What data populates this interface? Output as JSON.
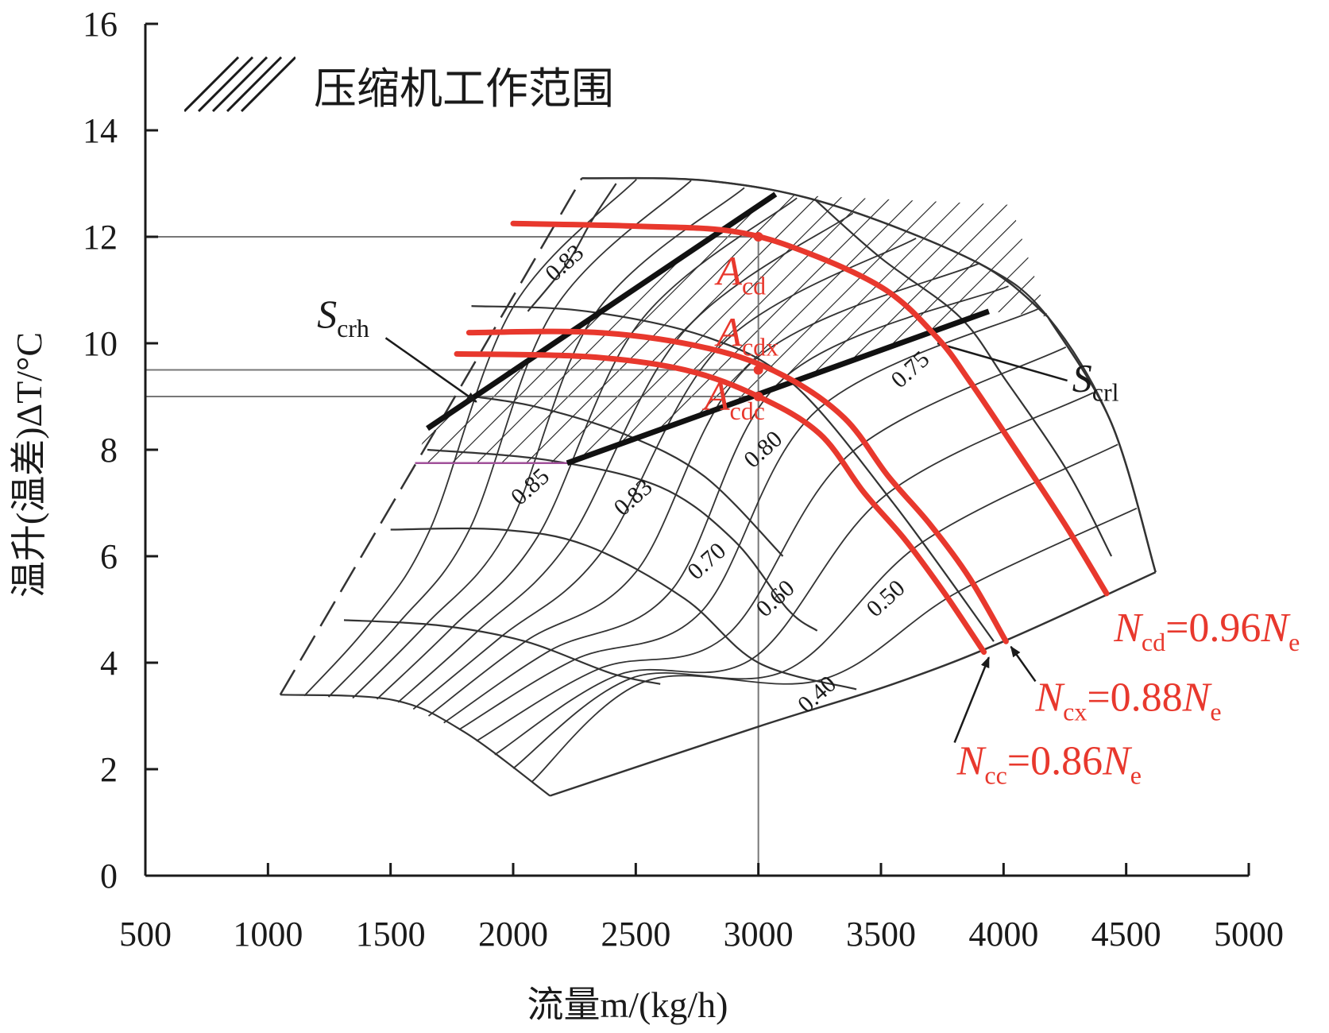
{
  "chart_data": {
    "type": "line",
    "xlabel": "流量m/(kg/h)",
    "ylabel": "温升(温差)ΔT/°C",
    "xlim": [
      500,
      5000
    ],
    "ylim": [
      0,
      16
    ],
    "xticks": [
      "500",
      "1000",
      "1500",
      "2000",
      "2500",
      "3000",
      "3500",
      "4000",
      "4500",
      "5000"
    ],
    "yticks": [
      "0",
      "2",
      "4",
      "6",
      "8",
      "10",
      "12",
      "14",
      "16"
    ],
    "legend": {
      "label": "压缩机工作范围",
      "placement": "top-left",
      "pattern": "hatch"
    },
    "colors": {
      "axis": "#1a1a1a",
      "grid": "#333333",
      "highlight": "#e8382d",
      "guide": "#777777",
      "magenta": "#a0509a"
    },
    "boundary_left": [
      [
        1050,
        3.4
      ],
      [
        1700,
        8.5
      ],
      [
        2280,
        13.1
      ]
    ],
    "boundary_top": [
      [
        2280,
        13.1
      ],
      [
        2800,
        13.05
      ],
      [
        3300,
        12.6
      ],
      [
        3900,
        11.5
      ],
      [
        4180,
        10.5
      ]
    ],
    "boundary_right": [
      [
        4180,
        10.5
      ],
      [
        4440,
        8.5
      ],
      [
        4620,
        5.7
      ]
    ],
    "boundary_bottom": [
      [
        4620,
        5.7
      ],
      [
        4000,
        4.4
      ],
      [
        3550,
        3.6
      ],
      [
        3000,
        2.8
      ],
      [
        2150,
        1.5
      ]
    ],
    "boundary_lower_left": [
      [
        1050,
        3.4
      ],
      [
        1510,
        3.3
      ],
      [
        1800,
        2.7
      ],
      [
        2150,
        1.5
      ]
    ],
    "speed_lines": [
      [
        [
          2280,
          13.1
        ],
        [
          2800,
          13.05
        ],
        [
          3300,
          12.6
        ],
        [
          3900,
          11.5
        ],
        [
          4180,
          10.5
        ],
        [
          4440,
          8.5
        ],
        [
          4620,
          5.7
        ]
      ],
      [
        [
          1830,
          10.7
        ],
        [
          2300,
          10.6
        ],
        [
          2800,
          10.1
        ],
        [
          3150,
          9.2
        ],
        [
          3550,
          7.0
        ],
        [
          3960,
          4.4
        ]
      ],
      [
        [
          1500,
          6.5
        ],
        [
          1950,
          6.5
        ],
        [
          2300,
          6.2
        ],
        [
          2700,
          5.2
        ],
        [
          3000,
          4.0
        ],
        [
          3400,
          3.5
        ]
      ],
      [
        [
          1310,
          4.8
        ],
        [
          1700,
          4.7
        ],
        [
          2050,
          4.4
        ],
        [
          2400,
          3.8
        ],
        [
          2600,
          3.6
        ]
      ],
      [
        [
          1050,
          3.4
        ],
        [
          1510,
          3.3
        ],
        [
          1800,
          2.7
        ],
        [
          2150,
          1.5
        ]
      ]
    ],
    "efficiency_lines": [
      {
        "label": "0.83",
        "points": [
          [
            1840,
            9.0
          ],
          [
            2100,
            8.8
          ],
          [
            2450,
            8.3
          ],
          [
            2780,
            7.5
          ],
          [
            3100,
            6.0
          ]
        ]
      },
      {
        "label": "0.85",
        "points": [
          [
            1650,
            8.0
          ],
          [
            2150,
            7.8
          ],
          [
            2600,
            7.3
          ],
          [
            2900,
            6.3
          ],
          [
            3120,
            5.0
          ],
          [
            3240,
            4.6
          ]
        ]
      },
      {
        "label": "0.83",
        "points": [
          [
            2420,
            13.0
          ],
          [
            2320,
            12.3
          ],
          [
            2220,
            11.5
          ],
          [
            2060,
            10.6
          ]
        ]
      },
      {
        "label": "0.75",
        "points": [
          [
            3230,
            12.7
          ],
          [
            3500,
            11.6
          ],
          [
            3820,
            10.5
          ],
          [
            4010,
            9.3
          ],
          [
            4260,
            7.6
          ],
          [
            4440,
            6.0
          ]
        ]
      }
    ],
    "efficiency_labels": [
      {
        "text": "0.83",
        "x": 2230,
        "y": 11.4
      },
      {
        "text": "0.85",
        "x": 2090,
        "y": 7.2
      },
      {
        "text": "0.83",
        "x": 2510,
        "y": 7.0
      },
      {
        "text": "0.80",
        "x": 3040,
        "y": 7.9
      },
      {
        "text": "0.75",
        "x": 3640,
        "y": 9.4
      },
      {
        "text": "0.70",
        "x": 2810,
        "y": 5.8
      },
      {
        "text": "0.60",
        "x": 3090,
        "y": 5.1
      },
      {
        "text": "0.50",
        "x": 3540,
        "y": 5.1
      },
      {
        "text": "0.40",
        "x": 3260,
        "y": 3.3
      }
    ],
    "surge_lines": [
      {
        "name": "S",
        "sub": "crh",
        "points": [
          [
            1650,
            8.4
          ],
          [
            3070,
            12.8
          ]
        ],
        "label_x": 1200,
        "label_y": 10.3,
        "arrow_to": [
          1850,
          8.9
        ]
      },
      {
        "name": "S",
        "sub": "crl",
        "points": [
          [
            2220,
            7.75
          ],
          [
            3940,
            10.6
          ]
        ],
        "label_x": 4280,
        "label_y": 9.1,
        "arrow_from": [
          3730,
          10.0
        ]
      }
    ],
    "magenta_line": [
      [
        1600,
        7.75
      ],
      [
        2220,
        7.75
      ]
    ],
    "guide_lines": {
      "horizontal_y": [
        12.0,
        9.5,
        9.0
      ],
      "vertical_x": 3000
    },
    "series": [
      {
        "name": "N",
        "name_sub": "cd",
        "label": "=0.96N",
        "label_sub": "e",
        "points": [
          [
            2000,
            12.25
          ],
          [
            2500,
            12.2
          ],
          [
            2900,
            12.1
          ],
          [
            3200,
            11.7
          ],
          [
            3520,
            11.0
          ],
          [
            3730,
            10.1
          ],
          [
            3860,
            9.3
          ],
          [
            4050,
            8.0
          ],
          [
            4250,
            6.6
          ],
          [
            4420,
            5.3
          ]
        ]
      },
      {
        "name": "N",
        "name_sub": "cx",
        "label": "=0.88N",
        "label_sub": "e",
        "points": [
          [
            1820,
            10.2
          ],
          [
            2350,
            10.2
          ],
          [
            2800,
            9.9
          ],
          [
            3100,
            9.4
          ],
          [
            3350,
            8.6
          ],
          [
            3530,
            7.5
          ],
          [
            3700,
            6.6
          ],
          [
            3860,
            5.6
          ],
          [
            4010,
            4.4
          ]
        ]
      },
      {
        "name": "N",
        "name_sub": "cc",
        "label": "=0.86N",
        "label_sub": "e",
        "points": [
          [
            1770,
            9.8
          ],
          [
            2300,
            9.75
          ],
          [
            2700,
            9.5
          ],
          [
            3000,
            9.0
          ],
          [
            3250,
            8.3
          ],
          [
            3430,
            7.2
          ],
          [
            3600,
            6.3
          ],
          [
            3760,
            5.3
          ],
          [
            3920,
            4.2
          ]
        ]
      }
    ],
    "operating_points": [
      {
        "name": "A",
        "sub": "cd",
        "x": 3000,
        "y": 12.0
      },
      {
        "name": "A",
        "sub": "cdx",
        "x": 3000,
        "y": 9.5
      },
      {
        "name": "A",
        "sub": "cdc",
        "x": 3000,
        "y": 9.0
      }
    ],
    "grid": false
  }
}
